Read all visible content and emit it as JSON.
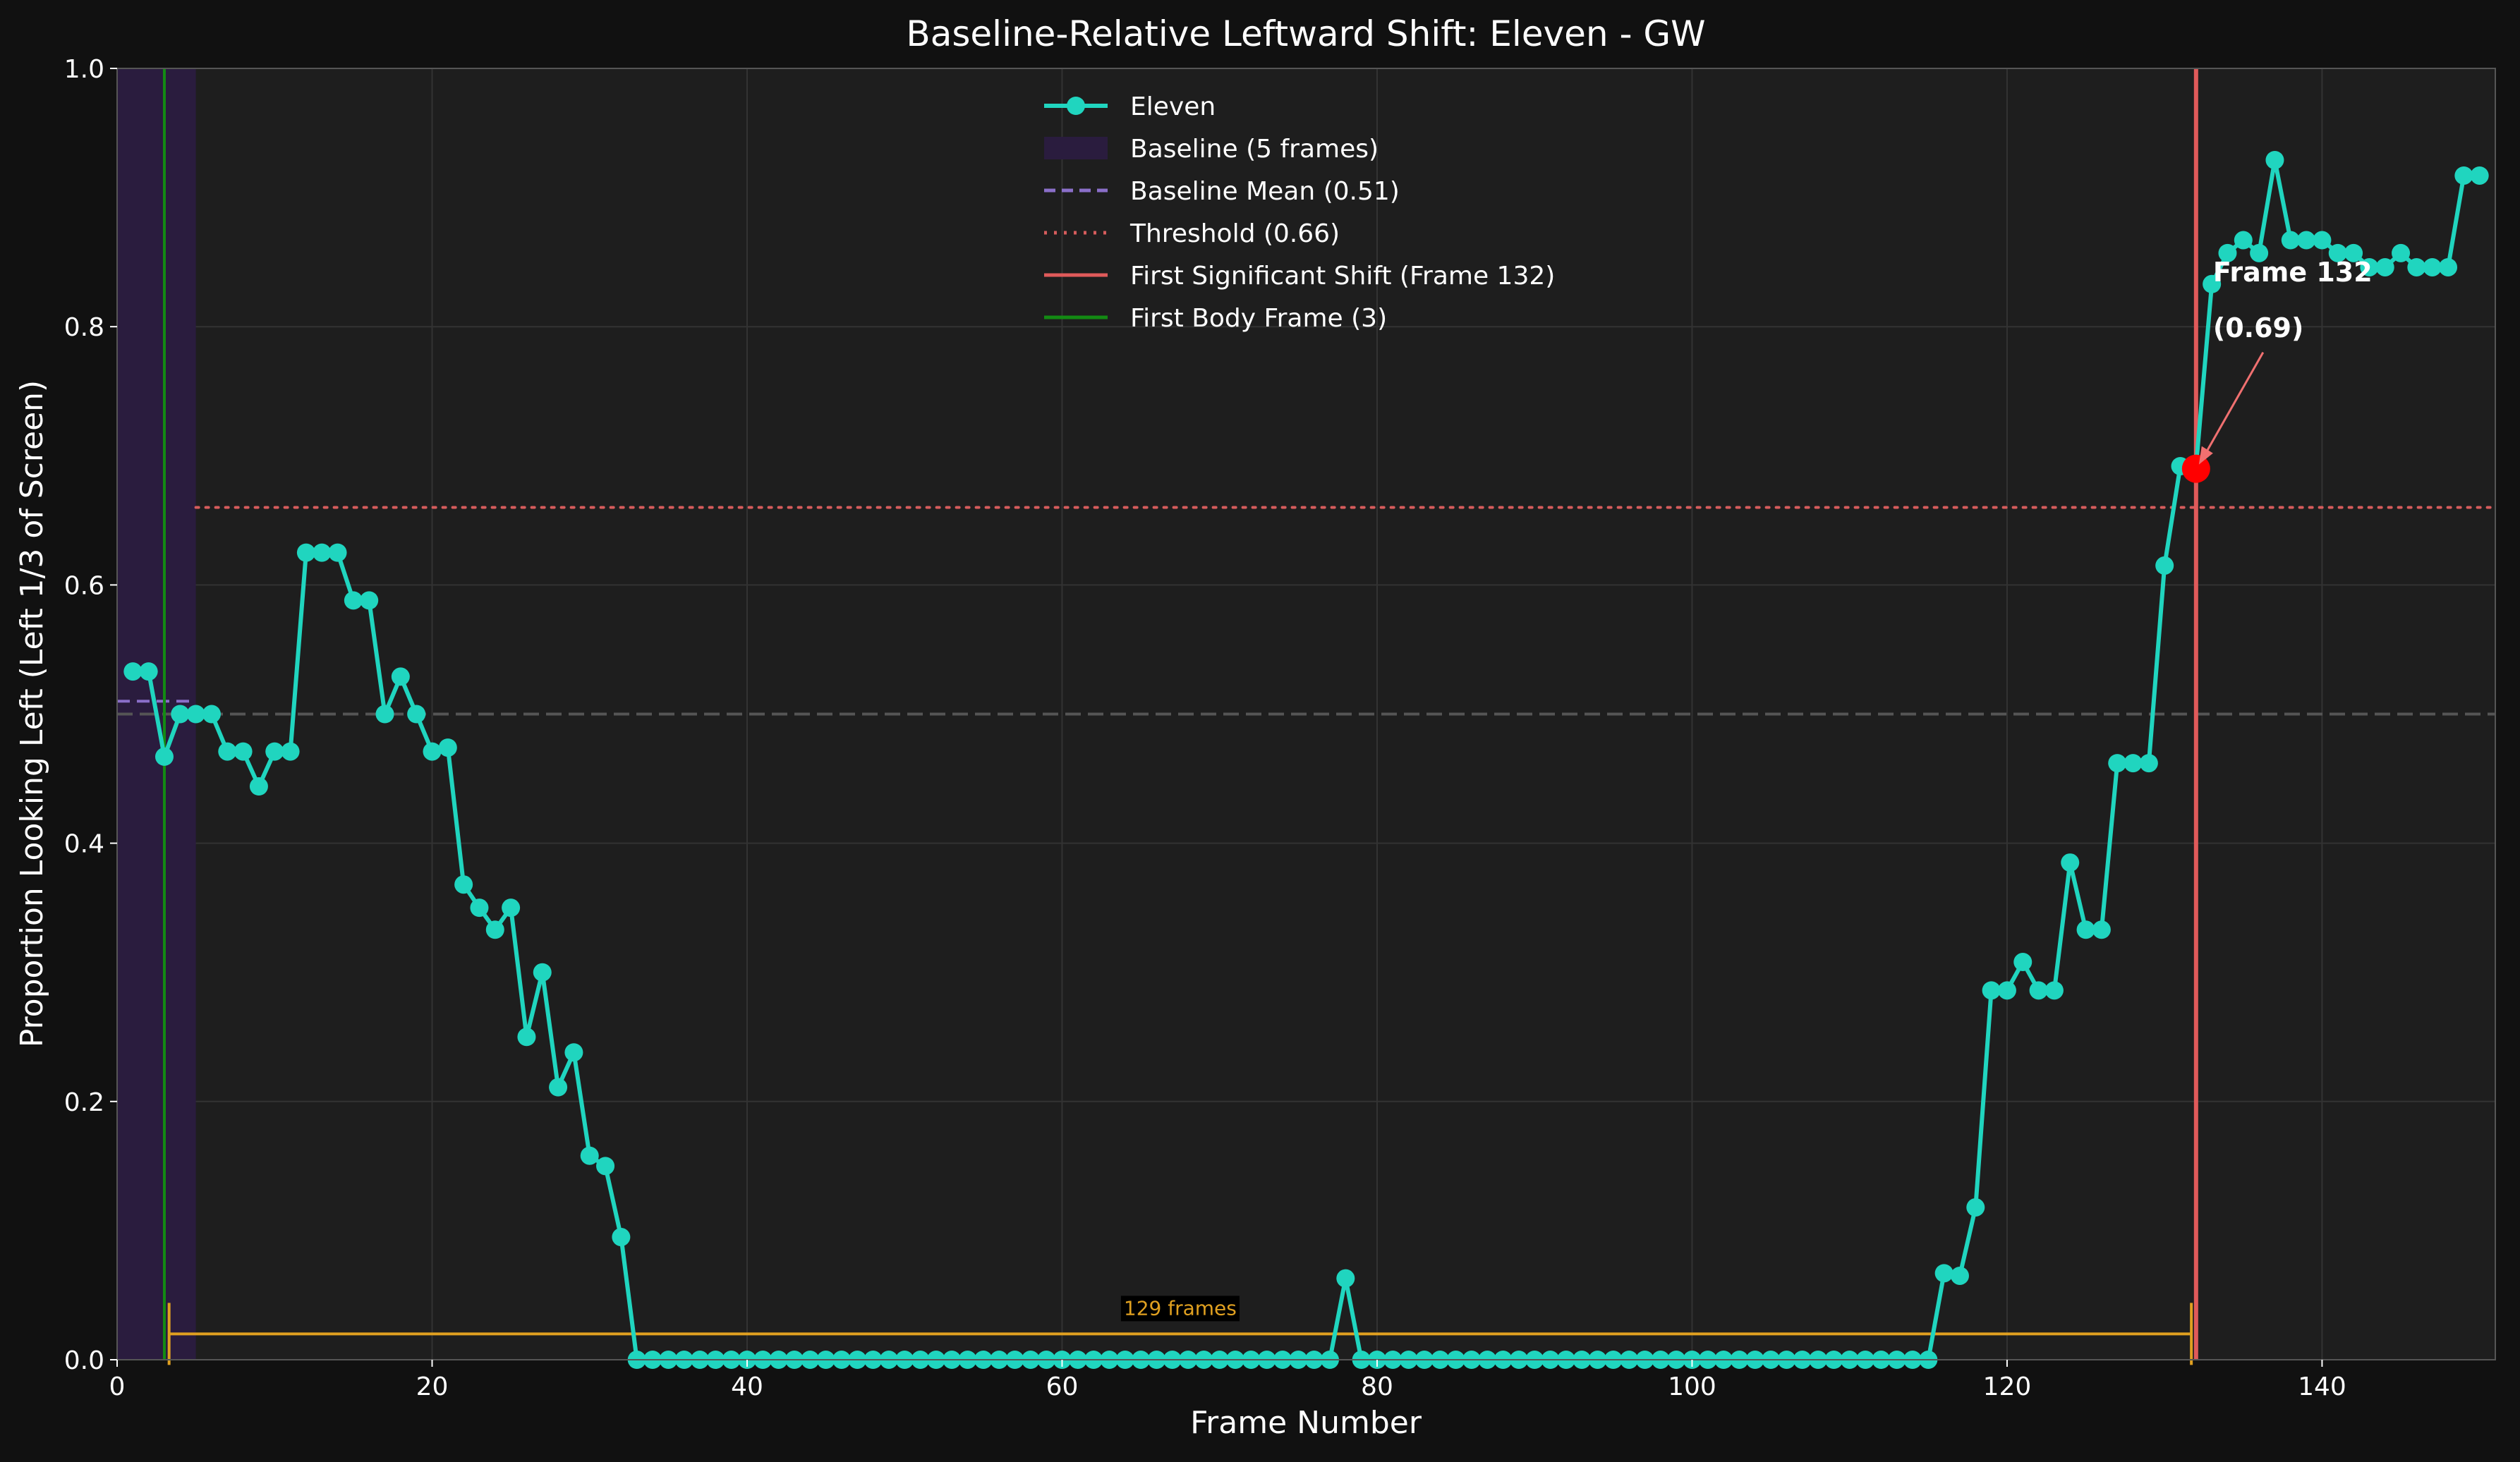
{
  "chart_data": {
    "type": "line",
    "title": "Baseline-Relative Leftward Shift: Eleven - GW",
    "xlabel": "Frame Number",
    "ylabel": "Proportion Looking Left (Left 1/3 of Screen)",
    "xlim": [
      0,
      151
    ],
    "ylim": [
      0,
      1.0
    ],
    "x_ticks": [
      "0",
      "20",
      "40",
      "60",
      "80",
      "100",
      "120",
      "140"
    ],
    "y_ticks": [
      "0.0",
      "0.2",
      "0.4",
      "0.6",
      "0.8",
      "1.0"
    ],
    "grid": true,
    "legend_position": "top-center",
    "series": [
      {
        "name": "Eleven",
        "color": "#20d5bf",
        "x": [
          1,
          2,
          3,
          4,
          5,
          6,
          7,
          8,
          9,
          10,
          11,
          12,
          13,
          14,
          15,
          16,
          17,
          18,
          19,
          20,
          21,
          22,
          23,
          24,
          25,
          26,
          27,
          28,
          29,
          30,
          31,
          32,
          33,
          34,
          35,
          36,
          37,
          38,
          39,
          40,
          41,
          42,
          43,
          44,
          45,
          46,
          47,
          48,
          49,
          50,
          51,
          52,
          53,
          54,
          55,
          56,
          57,
          58,
          59,
          60,
          61,
          62,
          63,
          64,
          65,
          66,
          67,
          68,
          69,
          70,
          71,
          72,
          73,
          74,
          75,
          76,
          77,
          78,
          79,
          80,
          81,
          82,
          83,
          84,
          85,
          86,
          87,
          88,
          89,
          90,
          91,
          92,
          93,
          94,
          95,
          96,
          97,
          98,
          99,
          100,
          101,
          102,
          103,
          104,
          105,
          106,
          107,
          108,
          109,
          110,
          111,
          112,
          113,
          114,
          115,
          116,
          117,
          118,
          119,
          120,
          121,
          122,
          123,
          124,
          125,
          126,
          127,
          128,
          129,
          130,
          131,
          132,
          133,
          134,
          135,
          136,
          137,
          138,
          139,
          140,
          141,
          142,
          143,
          144,
          145,
          146,
          147,
          148,
          149,
          150
        ],
        "y": [
          0.533,
          0.533,
          0.467,
          0.5,
          0.5,
          0.5,
          0.471,
          0.471,
          0.444,
          0.471,
          0.471,
          0.625,
          0.625,
          0.625,
          0.588,
          0.588,
          0.5,
          0.529,
          0.5,
          0.471,
          0.474,
          0.368,
          0.35,
          0.333,
          0.35,
          0.25,
          0.3,
          0.211,
          0.238,
          0.158,
          0.15,
          0.095,
          0,
          0,
          0,
          0,
          0,
          0,
          0,
          0,
          0,
          0,
          0,
          0,
          0,
          0,
          0,
          0,
          0,
          0,
          0,
          0,
          0,
          0,
          0,
          0,
          0,
          0,
          0,
          0,
          0,
          0,
          0,
          0,
          0,
          0,
          0,
          0,
          0,
          0,
          0,
          0,
          0,
          0,
          0,
          0,
          0,
          0.063,
          0,
          0,
          0,
          0,
          0,
          0,
          0,
          0,
          0,
          0,
          0,
          0,
          0,
          0,
          0,
          0,
          0,
          0,
          0,
          0,
          0,
          0,
          0,
          0,
          0,
          0,
          0,
          0,
          0,
          0,
          0,
          0,
          0,
          0,
          0,
          0,
          0,
          0.067,
          0.065,
          0.118,
          0.286,
          0.286,
          0.308,
          0.286,
          0.286,
          0.385,
          0.333,
          0.333,
          0.462,
          0.462,
          0.462,
          0.615,
          0.692,
          0.692,
          0.833,
          0.857,
          0.867,
          0.857,
          0.929,
          0.867,
          0.867,
          0.867,
          0.857,
          0.857,
          0.846,
          0.846,
          0.857,
          0.846,
          0.846,
          0.846,
          0.917,
          0.917
        ]
      }
    ],
    "baseline_span": [
      0,
      5
    ],
    "baseline_mean": 0.51,
    "reference_line": 0.5,
    "threshold": 0.66,
    "first_shift_frame": 132,
    "first_shift_value": 0.69,
    "first_body_frame": 3,
    "span_bracket": {
      "x_start": 3.3,
      "x_end": 131.7,
      "y": 0.02,
      "label": "129 frames"
    },
    "annotation": {
      "line1": "Frame 132",
      "line2": "(0.69)"
    },
    "legend": [
      {
        "label": "Eleven",
        "style": "marker-line",
        "color": "#20d5bf"
      },
      {
        "label": "Baseline (5 frames)",
        "style": "patch",
        "color": "#2a1c3e"
      },
      {
        "label": "Baseline Mean (0.51)",
        "style": "dashed",
        "color": "#8a6fc9"
      },
      {
        "label": "Threshold (0.66)",
        "style": "dotted",
        "color": "#d65c5c"
      },
      {
        "label": "First Significant Shift (Frame 132)",
        "style": "solid",
        "color": "#e05a5a"
      },
      {
        "label": "First Body Frame (3)",
        "style": "solid",
        "color": "#138a13"
      }
    ],
    "colors": {
      "background": "#111111",
      "plot_background": "#1e1e1e",
      "grid": "#333333",
      "reference": "#555555",
      "bracket": "#e0a020",
      "highlight_point": "#ff0000"
    }
  }
}
